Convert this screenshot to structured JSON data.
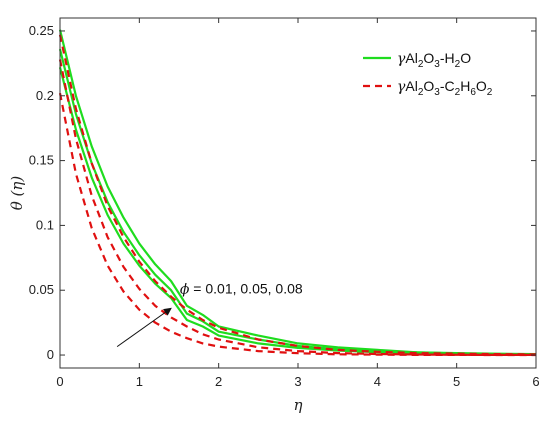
{
  "chart_data": {
    "type": "line",
    "xlabel": "η",
    "ylabel": "θ (η)",
    "xlim": [
      0,
      6
    ],
    "ylim": [
      -0.01,
      0.26
    ],
    "xticks": [
      "0",
      "1",
      "2",
      "3",
      "4",
      "5",
      "6"
    ],
    "yticks": [
      "0",
      "0.05",
      "0.1",
      "0.15",
      "0.2",
      "0.25"
    ],
    "grid": false,
    "legend_position": "top-right",
    "legend": [
      {
        "prefix": "γ",
        "parts": [
          [
            "Al",
            ""
          ],
          [
            "2",
            "sub"
          ],
          [
            "O",
            ""
          ],
          [
            "3",
            "sub"
          ],
          [
            "-H",
            ""
          ],
          [
            "2",
            "sub"
          ],
          [
            "O",
            ""
          ]
        ],
        "color": "#1fdc1f",
        "dash": "solid"
      },
      {
        "prefix": "γ",
        "parts": [
          [
            "Al",
            ""
          ],
          [
            "2",
            "sub"
          ],
          [
            "O",
            ""
          ],
          [
            "3",
            "sub"
          ],
          [
            "-C",
            ""
          ],
          [
            "2",
            "sub"
          ],
          [
            "H",
            ""
          ],
          [
            "6",
            "sub"
          ],
          [
            "O",
            ""
          ],
          [
            "2",
            "sub"
          ]
        ],
        "color": "#e01010",
        "dash": "dashed"
      }
    ],
    "annotation": {
      "symbol": "ϕ",
      "text": " = 0.01, 0.05, 0.08",
      "arrow_from": [
        0.72,
        0.0065
      ],
      "arrow_to": [
        1.41,
        0.0365
      ]
    },
    "x": [
      0,
      0.2,
      0.4,
      0.6,
      0.8,
      1.0,
      1.2,
      1.4,
      1.6,
      1.8,
      2.0,
      2.5,
      3.0,
      3.5,
      4.0,
      4.5,
      5.0,
      5.5,
      6.0
    ],
    "series": [
      {
        "group": 0,
        "color": "#1fdc1f",
        "dash": "solid",
        "values": [
          0.251,
          0.2,
          0.161,
          0.13,
          0.106,
          0.086,
          0.07,
          0.057,
          0.038,
          0.031,
          0.022,
          0.015,
          0.009,
          0.006,
          0.004,
          0.002,
          0.0015,
          0.001,
          0.0007
        ]
      },
      {
        "group": 0,
        "color": "#1fdc1f",
        "dash": "solid",
        "values": [
          0.236,
          0.186,
          0.148,
          0.118,
          0.095,
          0.077,
          0.062,
          0.05,
          0.032,
          0.026,
          0.018,
          0.012,
          0.007,
          0.0045,
          0.003,
          0.002,
          0.0012,
          0.0008,
          0.0005
        ]
      },
      {
        "group": 0,
        "color": "#1fdc1f",
        "dash": "solid",
        "values": [
          0.222,
          0.174,
          0.137,
          0.108,
          0.086,
          0.069,
          0.055,
          0.044,
          0.027,
          0.022,
          0.015,
          0.009,
          0.0055,
          0.0035,
          0.0022,
          0.0014,
          0.0009,
          0.0006,
          0.0004
        ]
      },
      {
        "group": 1,
        "color": "#e01010",
        "dash": "dashed",
        "values": [
          0.247,
          0.19,
          0.148,
          0.115,
          0.091,
          0.072,
          0.057,
          0.045,
          0.035,
          0.027,
          0.021,
          0.012,
          0.007,
          0.004,
          0.0025,
          0.0015,
          0.001,
          0.0007,
          0.0005
        ]
      },
      {
        "group": 1,
        "color": "#e01010",
        "dash": "dashed",
        "values": [
          0.228,
          0.167,
          0.123,
          0.091,
          0.068,
          0.051,
          0.038,
          0.029,
          0.022,
          0.016,
          0.012,
          0.006,
          0.003,
          0.0015,
          0.0008,
          0.0004,
          0.0002,
          0.0001,
          0.0001
        ]
      },
      {
        "group": 1,
        "color": "#e01010",
        "dash": "dashed",
        "values": [
          0.202,
          0.14,
          0.098,
          0.069,
          0.049,
          0.035,
          0.025,
          0.018,
          0.013,
          0.009,
          0.0065,
          0.003,
          0.0014,
          0.0006,
          0.0003,
          0.0001,
          0.0001,
          0.0,
          0.0
        ]
      }
    ]
  }
}
